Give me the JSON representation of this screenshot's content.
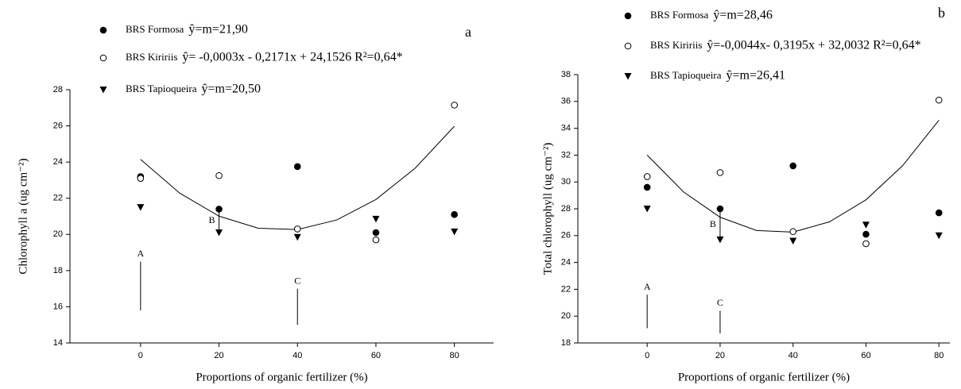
{
  "chart_data": [
    {
      "type": "scatter",
      "panel_label": "a",
      "y_label": "Chlorophyll a (ug cm⁻²)",
      "x_label": "Proportions of organic fertilizer (%)",
      "x": [
        0,
        20,
        40,
        60,
        80
      ],
      "xlim": [
        -18,
        90
      ],
      "xticks": [
        0,
        20,
        40,
        60,
        80
      ],
      "ylim": [
        14,
        28
      ],
      "yticks": [
        14,
        16,
        18,
        20,
        22,
        24,
        26,
        28
      ],
      "series": [
        {
          "name": "BRS Formosa",
          "equation": "ŷ=m=21,90",
          "marker": "filled-circle",
          "color": "#000000",
          "values": [
            23.2,
            21.4,
            23.75,
            20.1,
            21.1
          ]
        },
        {
          "name": "BRS Kiririis",
          "equation": "ŷ= -0,0003x - 0,2171x + 24,1526 R²=0,64*",
          "marker": "open-circle",
          "color": "#000000",
          "values": [
            23.1,
            23.25,
            20.3,
            19.7,
            27.15
          ]
        },
        {
          "name": "BRS Tapioqueira",
          "equation": "ŷ=m=20,50",
          "marker": "triangle-down",
          "color": "#000000",
          "values": [
            21.5,
            20.1,
            19.85,
            20.85,
            20.15
          ]
        }
      ],
      "fit": {
        "x": [
          0,
          10,
          20,
          30,
          40,
          50,
          60,
          70,
          80
        ],
        "values": [
          24.15,
          22.28,
          21.01,
          20.34,
          20.27,
          20.8,
          21.93,
          23.66,
          25.98
        ]
      },
      "annotations": [
        "A",
        "B",
        "C"
      ]
    },
    {
      "type": "scatter",
      "panel_label": "b",
      "y_label": "Total chlorophyll (ug cm⁻²)",
      "x_label": "Proportions of organic fertilizer (%)",
      "x": [
        0,
        20,
        40,
        60,
        80
      ],
      "xlim": [
        -19,
        83
      ],
      "xticks": [
        0,
        20,
        40,
        60,
        80
      ],
      "ylim": [
        18,
        38
      ],
      "yticks": [
        18,
        20,
        22,
        24,
        26,
        28,
        30,
        32,
        34,
        36,
        38
      ],
      "series": [
        {
          "name": "BRS Formosa",
          "equation": "ŷ=m=28,46",
          "marker": "filled-circle",
          "color": "#000000",
          "values": [
            29.6,
            28.0,
            31.2,
            26.1,
            27.7
          ]
        },
        {
          "name": "BRS Kiririis",
          "equation": "ŷ=-0,0044x- 0,3195x + 32,0032 R²=0,64*",
          "marker": "open-circle",
          "color": "#000000",
          "values": [
            30.4,
            30.7,
            26.3,
            25.4,
            36.1
          ]
        },
        {
          "name": "BRS Tapioqueira",
          "equation": "ŷ=m=26,41",
          "marker": "triangle-down",
          "color": "#000000",
          "values": [
            28.0,
            25.7,
            25.6,
            26.8,
            26.0
          ]
        }
      ],
      "fit": {
        "x": [
          0,
          10,
          20,
          30,
          40,
          50,
          60,
          70,
          80
        ],
        "values": [
          32.0,
          29.25,
          27.37,
          26.38,
          26.26,
          27.03,
          28.67,
          31.2,
          34.6
        ]
      },
      "annotations": [
        "A",
        "B",
        "C"
      ]
    }
  ]
}
